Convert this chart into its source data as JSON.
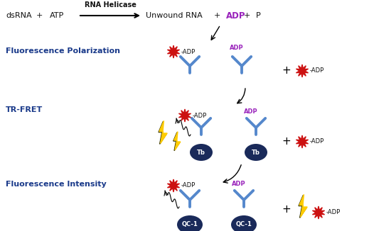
{
  "bg_color": "#ffffff",
  "section_labels": [
    "Fluorescence Polarization",
    "TR-FRET",
    "Fluorescence Intensity"
  ],
  "section_label_color": "#1a3a8a",
  "antibody_color": "#5588cc",
  "dark_circle_color": "#1a2a5a",
  "red_star_color": "#cc1111",
  "yellow_lightning_color": "#ffcc00",
  "purple_adp_color": "#9922bb",
  "dark_text_color": "#111111"
}
